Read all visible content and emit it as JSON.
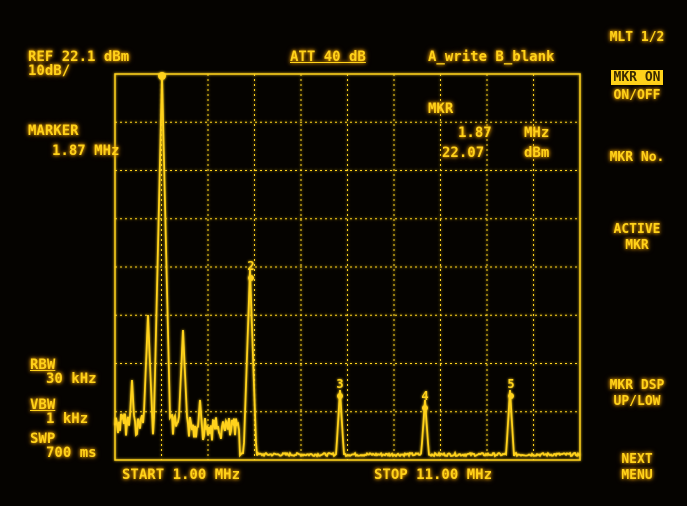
{
  "header": {
    "ref_level": "REF 22.1 dBm",
    "scale": "10dB/",
    "attenuation": "ATT 40 dB",
    "trace_mode": "A_write B_blank"
  },
  "marker_left": {
    "label": "MARKER",
    "value": "1.87 MHz"
  },
  "marker_readout": {
    "label": "MKR",
    "freq": "1.87",
    "freq_unit": "MHz",
    "level": "22.07",
    "level_unit": "dBm"
  },
  "bandwidth": {
    "rbw_label": "RBW",
    "rbw": "30 kHz",
    "vbw_label": "VBW",
    "vbw": "1 kHz",
    "swp_label": "SWP",
    "swp": "700 ms"
  },
  "footer": {
    "start": "START 1.00 MHz",
    "stop": "STOP 11.00 MHz"
  },
  "softkeys": {
    "title": "MLT 1/2",
    "mkr_on": "MKR ON",
    "on_off": "ON/OFF",
    "mkr_no": "MKR No.",
    "active_mkr_1": "ACTIVE",
    "active_mkr_2": "MKR",
    "mkr_dsp": "MKR DSP",
    "up_low": "UP/LOW",
    "next_menu_1": "NEXT",
    "next_menu_2": "MENU"
  },
  "marker_labels": [
    "2",
    "3",
    "4",
    "5"
  ],
  "colors": {
    "trace": "#ffd21a",
    "glow": "#ffb000",
    "background": "#050300"
  }
}
